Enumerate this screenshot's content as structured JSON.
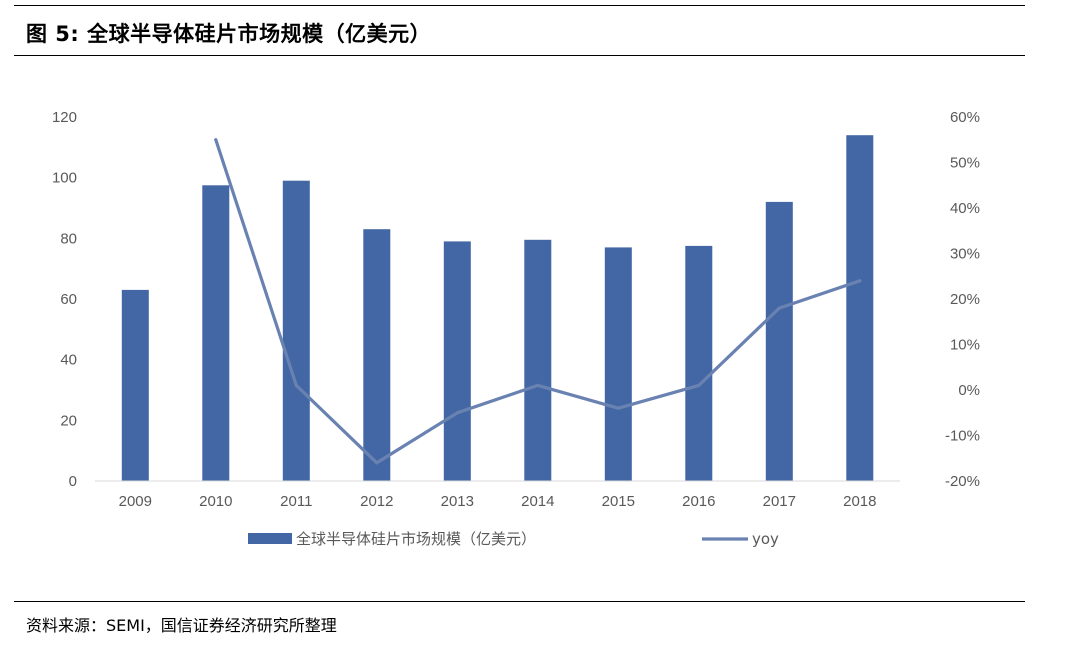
{
  "figure": {
    "title": "图 5:  全球半导体硅片市场规模（亿美元）",
    "source": "资料来源：SEMI，国信证券经济研究所整理"
  },
  "chart_data": {
    "type": "bar",
    "categories": [
      "2009",
      "2010",
      "2011",
      "2012",
      "2013",
      "2014",
      "2015",
      "2016",
      "2017",
      "2018"
    ],
    "series": [
      {
        "name": "全球半导体硅片市场规模（亿美元）",
        "type": "bar",
        "axis": "left",
        "color": "#4267a4",
        "values": [
          63,
          97.5,
          99,
          83,
          79,
          79.5,
          77,
          77.5,
          92,
          114
        ]
      },
      {
        "name": "yoy",
        "type": "line",
        "axis": "right",
        "color": "#6a82b2",
        "values": [
          null,
          55,
          1,
          -16,
          -5,
          1,
          -4,
          1,
          18,
          24
        ]
      }
    ],
    "y_left": {
      "ylim": [
        0,
        120
      ],
      "ticks": [
        "0",
        "20",
        "40",
        "60",
        "80",
        "100",
        "120"
      ]
    },
    "y_right": {
      "ylim": [
        -20,
        60
      ],
      "ticks": [
        "-20%",
        "-10%",
        "0%",
        "10%",
        "20%",
        "30%",
        "40%",
        "50%",
        "60%"
      ]
    },
    "legend_position": "bottom",
    "grid": false
  }
}
